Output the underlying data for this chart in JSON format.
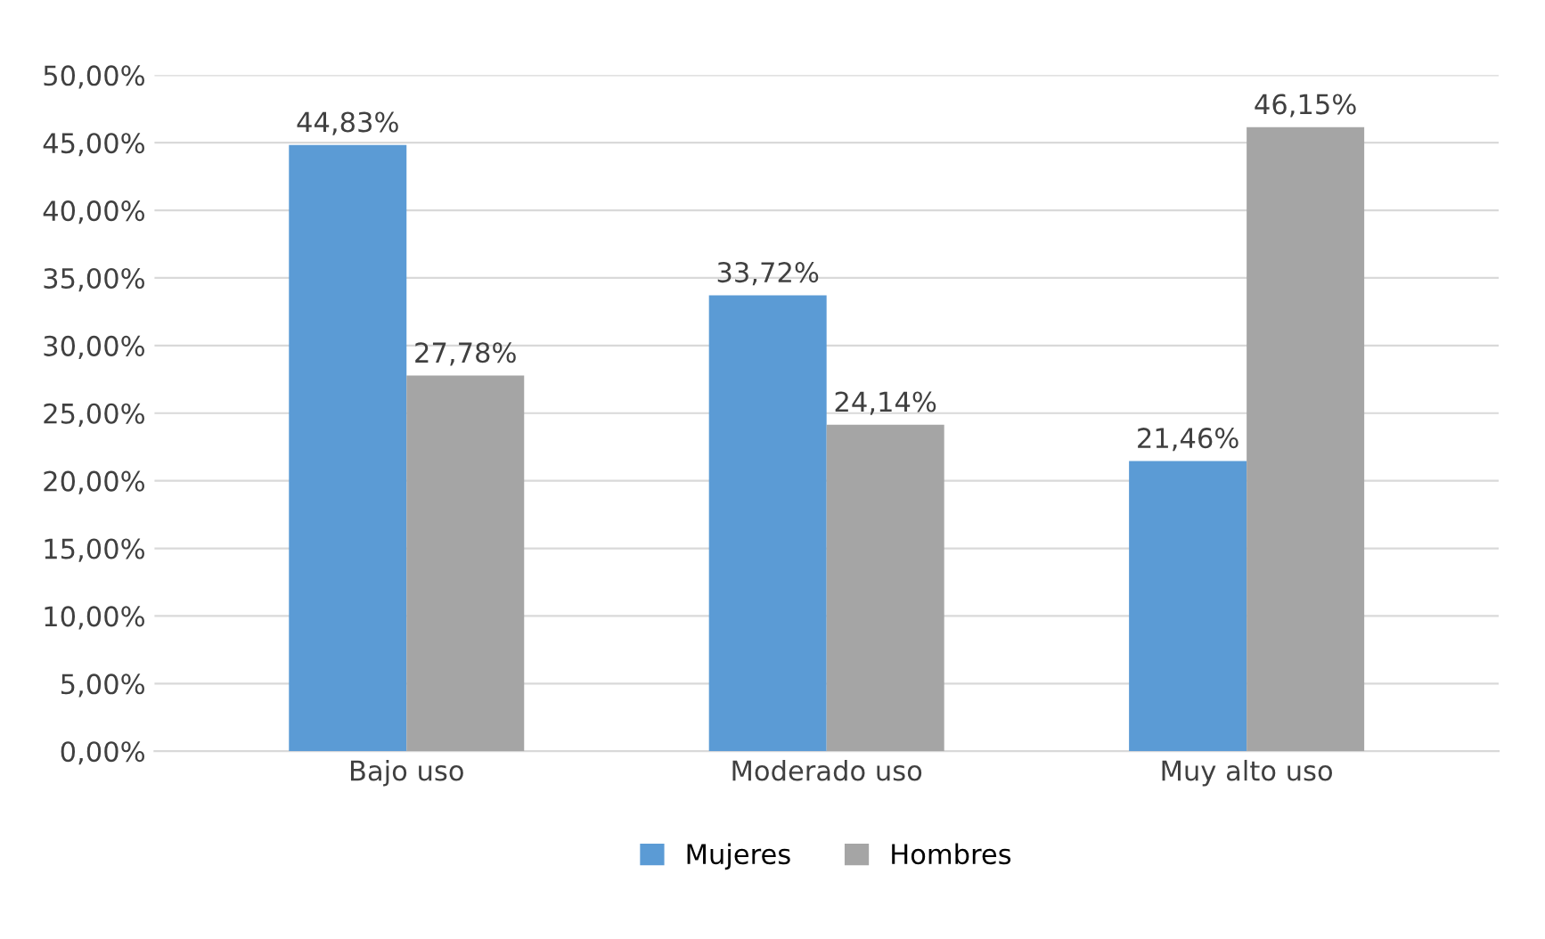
{
  "chart_data": {
    "type": "bar",
    "categories": [
      "Bajo uso",
      "Moderado uso",
      "Muy alto uso"
    ],
    "series": [
      {
        "name": "Mujeres",
        "color": "#5b9bd5",
        "values": [
          44.83,
          33.72,
          21.46
        ],
        "value_labels": [
          "44,83%",
          "33,72%",
          "21,46%"
        ]
      },
      {
        "name": "Hombres",
        "color": "#a5a5a5",
        "values": [
          27.78,
          24.14,
          46.15
        ],
        "value_labels": [
          "27,78%",
          "24,14%",
          "46,15%"
        ]
      }
    ],
    "ylim": [
      0,
      50
    ],
    "yticks": [
      {
        "value": 0,
        "label": "0,00%"
      },
      {
        "value": 5,
        "label": "5,00%"
      },
      {
        "value": 10,
        "label": "10,00%"
      },
      {
        "value": 15,
        "label": "15,00%"
      },
      {
        "value": 20,
        "label": "20,00%"
      },
      {
        "value": 25,
        "label": "25,00%"
      },
      {
        "value": 30,
        "label": "30,00%"
      },
      {
        "value": 35,
        "label": "35,00%"
      },
      {
        "value": 40,
        "label": "40,00%"
      },
      {
        "value": 45,
        "label": "45,00%"
      },
      {
        "value": 50,
        "label": "50,00%"
      }
    ],
    "grid": "y",
    "legend": "bottom"
  }
}
